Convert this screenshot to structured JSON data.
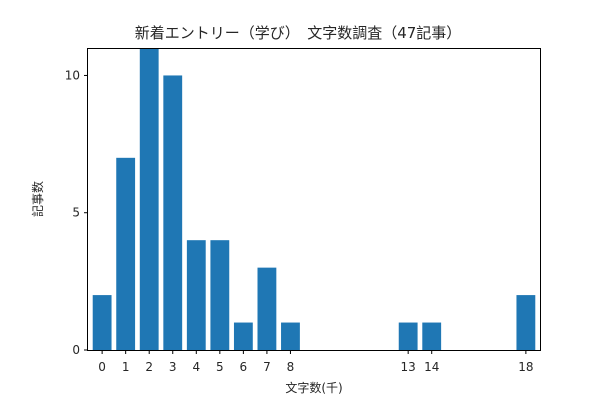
{
  "chart_data": {
    "type": "bar",
    "title": "新着エントリー（学び）　文字数調査（47記事）",
    "xlabel": "文字数(千)",
    "ylabel": "記事数",
    "categories": [
      0,
      1,
      2,
      3,
      4,
      5,
      6,
      7,
      8,
      13,
      14,
      18
    ],
    "values": [
      2,
      7,
      11,
      10,
      4,
      4,
      1,
      3,
      1,
      1,
      1,
      2
    ],
    "xticks": [
      "0",
      "1",
      "2",
      "3",
      "4",
      "5",
      "6",
      "7",
      "8",
      "13",
      "14",
      "18"
    ],
    "yticks": [
      0,
      5,
      10
    ],
    "ylim": [
      0,
      11
    ],
    "xlim": [
      -0.6,
      18.6
    ],
    "grid": false,
    "bar_color": "#1f77b4"
  }
}
